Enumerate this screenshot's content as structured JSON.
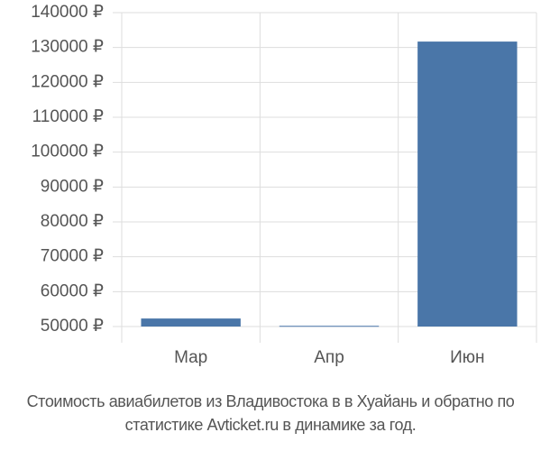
{
  "chart_data": {
    "type": "bar",
    "title": "Стоимость авиабилетов из Владивостока в в Хуайань и обратно по статистике Avticket.ru в динамике за год.",
    "categories": [
      "Мар",
      "Апр",
      "Июн"
    ],
    "values": [
      52300,
      50200,
      131700
    ],
    "color": "#4a76a8",
    "ylim": [
      50000,
      140000
    ],
    "yticks": [
      {
        "value": 50000,
        "label": "50000 ₽"
      },
      {
        "value": 60000,
        "label": "60000 ₽"
      },
      {
        "value": 70000,
        "label": "70000 ₽"
      },
      {
        "value": 80000,
        "label": "80000 ₽"
      },
      {
        "value": 90000,
        "label": "90000 ₽"
      },
      {
        "value": 100000,
        "label": "100000 ₽"
      },
      {
        "value": 110000,
        "label": "110000 ₽"
      },
      {
        "value": 120000,
        "label": "120000 ₽"
      },
      {
        "value": 130000,
        "label": "130000 ₽"
      },
      {
        "value": 140000,
        "label": "140000 ₽"
      }
    ],
    "grid": true
  }
}
